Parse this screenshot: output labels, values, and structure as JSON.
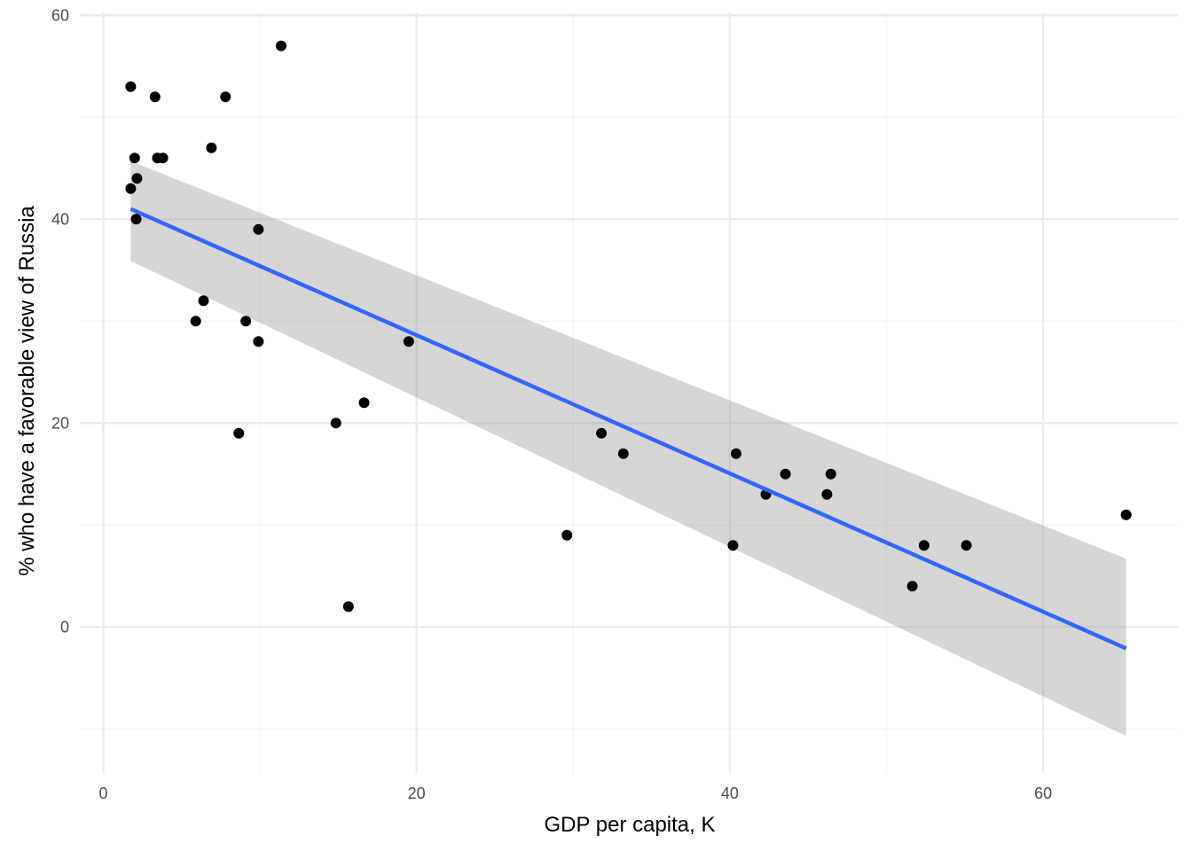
{
  "chart_data": {
    "type": "scatter",
    "title": "",
    "xlabel": "GDP per capita, K",
    "ylabel": "% who have a favorable view of Russia",
    "xlim": [
      -1.5,
      68.6
    ],
    "ylim": [
      -14.5,
      61.5
    ],
    "x_ticks": [
      0,
      20,
      40,
      60
    ],
    "x_tick_labels": [
      "0",
      "20",
      "40",
      "60"
    ],
    "x_minor_ticks": [
      10,
      30,
      50
    ],
    "y_ticks": [
      0,
      20,
      40,
      60
    ],
    "y_tick_labels": [
      "0",
      "20",
      "40",
      "60"
    ],
    "y_minor_ticks": [
      -10,
      10,
      30,
      50
    ],
    "grid": true,
    "legend": "none",
    "points": [
      {
        "x": 1.75,
        "y": 53
      },
      {
        "x": 2.0,
        "y": 46
      },
      {
        "x": 2.15,
        "y": 44
      },
      {
        "x": 1.75,
        "y": 43
      },
      {
        "x": 2.1,
        "y": 40
      },
      {
        "x": 3.3,
        "y": 52
      },
      {
        "x": 3.45,
        "y": 46
      },
      {
        "x": 3.8,
        "y": 46
      },
      {
        "x": 6.9,
        "y": 47
      },
      {
        "x": 7.8,
        "y": 52
      },
      {
        "x": 11.35,
        "y": 57
      },
      {
        "x": 9.9,
        "y": 39
      },
      {
        "x": 6.4,
        "y": 32
      },
      {
        "x": 5.9,
        "y": 30
      },
      {
        "x": 9.1,
        "y": 30
      },
      {
        "x": 9.9,
        "y": 28
      },
      {
        "x": 8.65,
        "y": 19
      },
      {
        "x": 14.85,
        "y": 20
      },
      {
        "x": 16.65,
        "y": 22
      },
      {
        "x": 15.65,
        "y": 2
      },
      {
        "x": 19.5,
        "y": 28
      },
      {
        "x": 29.6,
        "y": 9
      },
      {
        "x": 31.8,
        "y": 19
      },
      {
        "x": 33.2,
        "y": 17
      },
      {
        "x": 40.2,
        "y": 8
      },
      {
        "x": 40.4,
        "y": 17
      },
      {
        "x": 42.3,
        "y": 13
      },
      {
        "x": 43.55,
        "y": 15
      },
      {
        "x": 46.2,
        "y": 13
      },
      {
        "x": 46.45,
        "y": 15
      },
      {
        "x": 51.65,
        "y": 4
      },
      {
        "x": 52.4,
        "y": 8
      },
      {
        "x": 55.1,
        "y": 8
      },
      {
        "x": 65.3,
        "y": 11
      }
    ],
    "fit_line": {
      "method": "linear",
      "x": [
        1.75,
        65.3
      ],
      "y": [
        41.0,
        -2.1
      ],
      "ci_upper": [
        45.7,
        6.7
      ],
      "ci_lower": [
        35.9,
        -10.7
      ]
    },
    "colors": {
      "point": "#000000",
      "line": "#3366ff",
      "ribbon": "#999999",
      "grid_major": "#ebebeb",
      "grid_minor": "#f5f5f5",
      "tick_text": "#4d4d4d"
    }
  }
}
